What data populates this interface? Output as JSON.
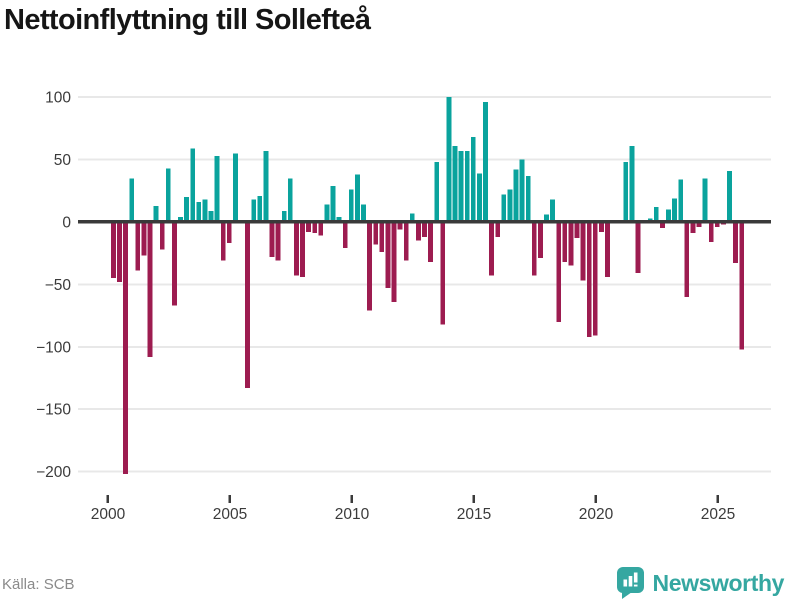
{
  "header": {
    "title": "Nettoinflyttning till Sollefteå"
  },
  "footer": {
    "source": "Källa: SCB",
    "brand": "Newsworthy"
  },
  "colors": {
    "positive": "#0aa39d",
    "negative": "#9d1c50",
    "brand": "#35a7a1",
    "grid": "#e8e8e8",
    "axis": "#3a3a3a",
    "text": "#3b3b3b",
    "muted": "#8a8a8a"
  },
  "chart_data": {
    "type": "bar",
    "title": "Nettoinflyttning till Sollefteå",
    "source": "Källa: SCB",
    "frequency": "quarterly",
    "start": "2000-Q1",
    "end": "2025-Q4",
    "values": [
      -45,
      -48,
      -202,
      35,
      -39,
      -27,
      -108,
      13,
      -22,
      43,
      -67,
      4,
      20,
      59,
      16,
      18,
      9,
      53,
      -31,
      -17,
      55,
      0,
      -133,
      18,
      21,
      57,
      -28,
      -31,
      9,
      35,
      -43,
      -44,
      -8,
      -9,
      -11,
      14,
      29,
      4,
      -21,
      26,
      38,
      14,
      -71,
      -18,
      -24,
      -53,
      -64,
      -6,
      -31,
      7,
      -15,
      -12,
      -32,
      48,
      -82,
      100,
      61,
      57,
      57,
      68,
      39,
      96,
      -43,
      -12,
      22,
      26,
      42,
      50,
      37,
      -43,
      -29,
      6,
      18,
      -80,
      -32,
      -35,
      -13,
      -47,
      -92,
      -91,
      -8,
      -44,
      0,
      0,
      48,
      61,
      -41,
      0,
      3,
      12,
      -5,
      10,
      19,
      34,
      -60,
      -9,
      -4,
      35,
      -16,
      -4,
      -2,
      41,
      -33,
      -102
    ],
    "x_tick_labels": [
      "2000",
      "2005",
      "2010",
      "2015",
      "2020",
      "2025"
    ],
    "y_tick_values": [
      100,
      50,
      0,
      -50,
      -100,
      -150,
      -200
    ],
    "ylim": [
      -210,
      105
    ],
    "grid": "horizontal",
    "legend": "none",
    "bar_colors": {
      "positive": "#0aa39d",
      "negative": "#9d1c50"
    }
  }
}
